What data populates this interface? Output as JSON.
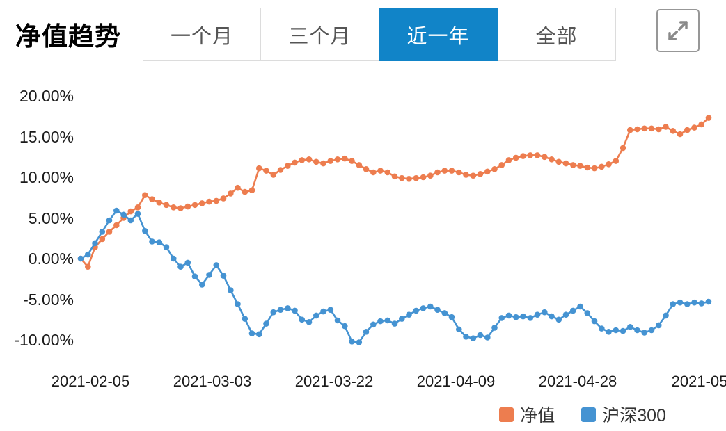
{
  "header": {
    "title": "净值趋势",
    "tabs": [
      "一个月",
      "三个月",
      "近一年",
      "全部"
    ],
    "active_index": 2,
    "active_tab_color": "#1184c8",
    "expand_icon": "expand-arrows-icon"
  },
  "chart_data": {
    "type": "line",
    "title": "净值趋势",
    "xlabel": "",
    "ylabel": "",
    "y_unit": "%",
    "ylim": [
      -10,
      20
    ],
    "grid": false,
    "markers": "circle",
    "legend_position": "bottom-right",
    "y_ticks": [
      "20.00%",
      "15.00%",
      "10.00%",
      "5.00%",
      "0.00%",
      "-5.00%",
      "-10.00%"
    ],
    "x_labels": [
      "2021-02-05",
      "2021-03-03",
      "2021-03-22",
      "2021-04-09",
      "2021-04-28",
      "2021-05"
    ],
    "series": [
      {
        "name": "净值",
        "color": "#ed7d4f",
        "values": [
          0.0,
          -1.0,
          1.4,
          2.4,
          3.3,
          4.1,
          5.0,
          5.8,
          6.3,
          7.8,
          7.3,
          6.9,
          6.6,
          6.3,
          6.2,
          6.4,
          6.6,
          6.8,
          7.0,
          7.1,
          7.4,
          8.0,
          8.7,
          8.2,
          8.4,
          11.1,
          10.8,
          10.3,
          10.9,
          11.4,
          11.8,
          12.1,
          12.2,
          11.9,
          11.7,
          12.0,
          12.2,
          12.3,
          12.0,
          11.5,
          11.0,
          10.6,
          10.8,
          10.6,
          10.1,
          9.9,
          9.8,
          9.9,
          10.0,
          10.2,
          10.6,
          10.8,
          10.8,
          10.6,
          10.3,
          10.2,
          10.4,
          10.7,
          11.0,
          11.5,
          12.1,
          12.4,
          12.6,
          12.7,
          12.7,
          12.5,
          12.2,
          11.9,
          11.7,
          11.5,
          11.4,
          11.2,
          11.1,
          11.3,
          11.6,
          12.0,
          13.6,
          15.8,
          15.9,
          16.0,
          16.0,
          15.9,
          16.2,
          15.7,
          15.3,
          15.8,
          16.1,
          16.5,
          17.3
        ]
      },
      {
        "name": "沪深300",
        "color": "#4593d2",
        "values": [
          0.0,
          0.5,
          1.9,
          3.3,
          4.7,
          5.9,
          5.4,
          4.7,
          5.5,
          3.4,
          2.1,
          2.0,
          1.4,
          0.0,
          -1.0,
          -0.5,
          -2.2,
          -3.2,
          -2.0,
          -0.8,
          -2.1,
          -3.9,
          -5.6,
          -7.4,
          -9.2,
          -9.3,
          -8.0,
          -6.6,
          -6.3,
          -6.1,
          -6.4,
          -7.5,
          -7.8,
          -7.0,
          -6.5,
          -6.3,
          -7.6,
          -8.3,
          -10.2,
          -10.3,
          -9.0,
          -8.1,
          -7.7,
          -7.6,
          -8.0,
          -7.4,
          -6.9,
          -6.4,
          -6.1,
          -5.9,
          -6.3,
          -6.7,
          -7.2,
          -8.7,
          -9.6,
          -9.8,
          -9.4,
          -9.7,
          -8.5,
          -7.3,
          -7.0,
          -7.2,
          -7.1,
          -7.3,
          -6.9,
          -6.6,
          -7.1,
          -7.5,
          -6.9,
          -6.4,
          -5.9,
          -6.7,
          -7.7,
          -8.6,
          -9.0,
          -8.8,
          -8.9,
          -8.4,
          -8.8,
          -9.1,
          -8.8,
          -8.2,
          -7.0,
          -5.6,
          -5.4,
          -5.6,
          -5.4,
          -5.5,
          -5.3
        ]
      }
    ]
  }
}
